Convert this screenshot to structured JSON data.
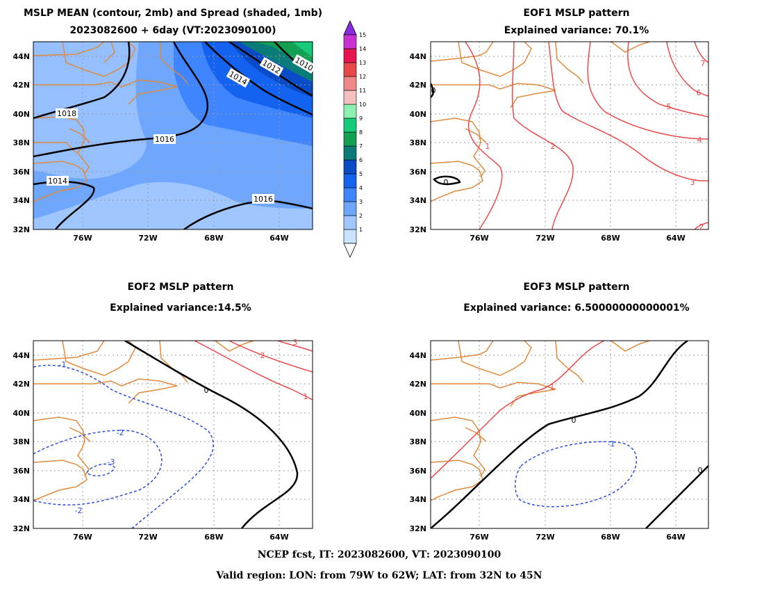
{
  "colors": {
    "coast": "#e08a3c",
    "pos_contour": "#e84a4a",
    "neg_contour": "#2a4be0",
    "zero_contour": "#000000",
    "grid": "#999999"
  },
  "axes": {
    "lon_ticks": [
      "76W",
      "72W",
      "68W",
      "64W"
    ],
    "lat_ticks": [
      "32N",
      "34N",
      "36N",
      "38N",
      "40N",
      "42N",
      "44N"
    ]
  },
  "colorbar": {
    "labels": [
      "1",
      "2",
      "3",
      "4",
      "5",
      "6",
      "7",
      "8",
      "9",
      "10",
      "11",
      "12",
      "13",
      "14",
      "15"
    ],
    "colors": [
      "#cbe2ff",
      "#9fc6ff",
      "#6fa7ff",
      "#3f85ff",
      "#1463f0",
      "#0a4cc8",
      "#0a7c78",
      "#12a052",
      "#16cc7a",
      "#8cf0b0",
      "#f4c0c0",
      "#f08888",
      "#e84848",
      "#e81450",
      "#c832d2"
    ]
  },
  "panels": [
    {
      "id": "mean-spread",
      "title_lines": [
        "MSLP MEAN (contour, 2mb) and Spread (shaded, 1mb)",
        "2023082600 + 6day (VT:2023090100)"
      ],
      "contour_labels": [
        "1018",
        "1016",
        "1014",
        "1016",
        "1014",
        "1012",
        "1010"
      ]
    },
    {
      "id": "eof1",
      "title_lines": [
        "EOF1 MSLP pattern",
        "Explained variance: 70.1%"
      ],
      "contour_labels": [
        "0",
        "1",
        "2",
        "3",
        "4",
        "5",
        "6",
        "7",
        "0",
        "2"
      ]
    },
    {
      "id": "eof2",
      "title_lines": [
        "EOF2 MSLP pattern",
        "Explained variance:14.5%"
      ],
      "contour_labels": [
        "-1",
        "-2",
        "-3",
        "-2",
        "0",
        "1",
        "2",
        "3"
      ]
    },
    {
      "id": "eof3",
      "title_lines": [
        "EOF3 MSLP pattern",
        "Explained variance: 6.50000000000001%"
      ],
      "contour_labels": [
        "1",
        "0",
        "-1",
        "0"
      ]
    }
  ],
  "footer": {
    "line1": "NCEP fcst, IT: 2023082600, VT: 2023090100",
    "line2": "Valid region: LON: from 79W to 62W; LAT: from 32N to 45N"
  }
}
